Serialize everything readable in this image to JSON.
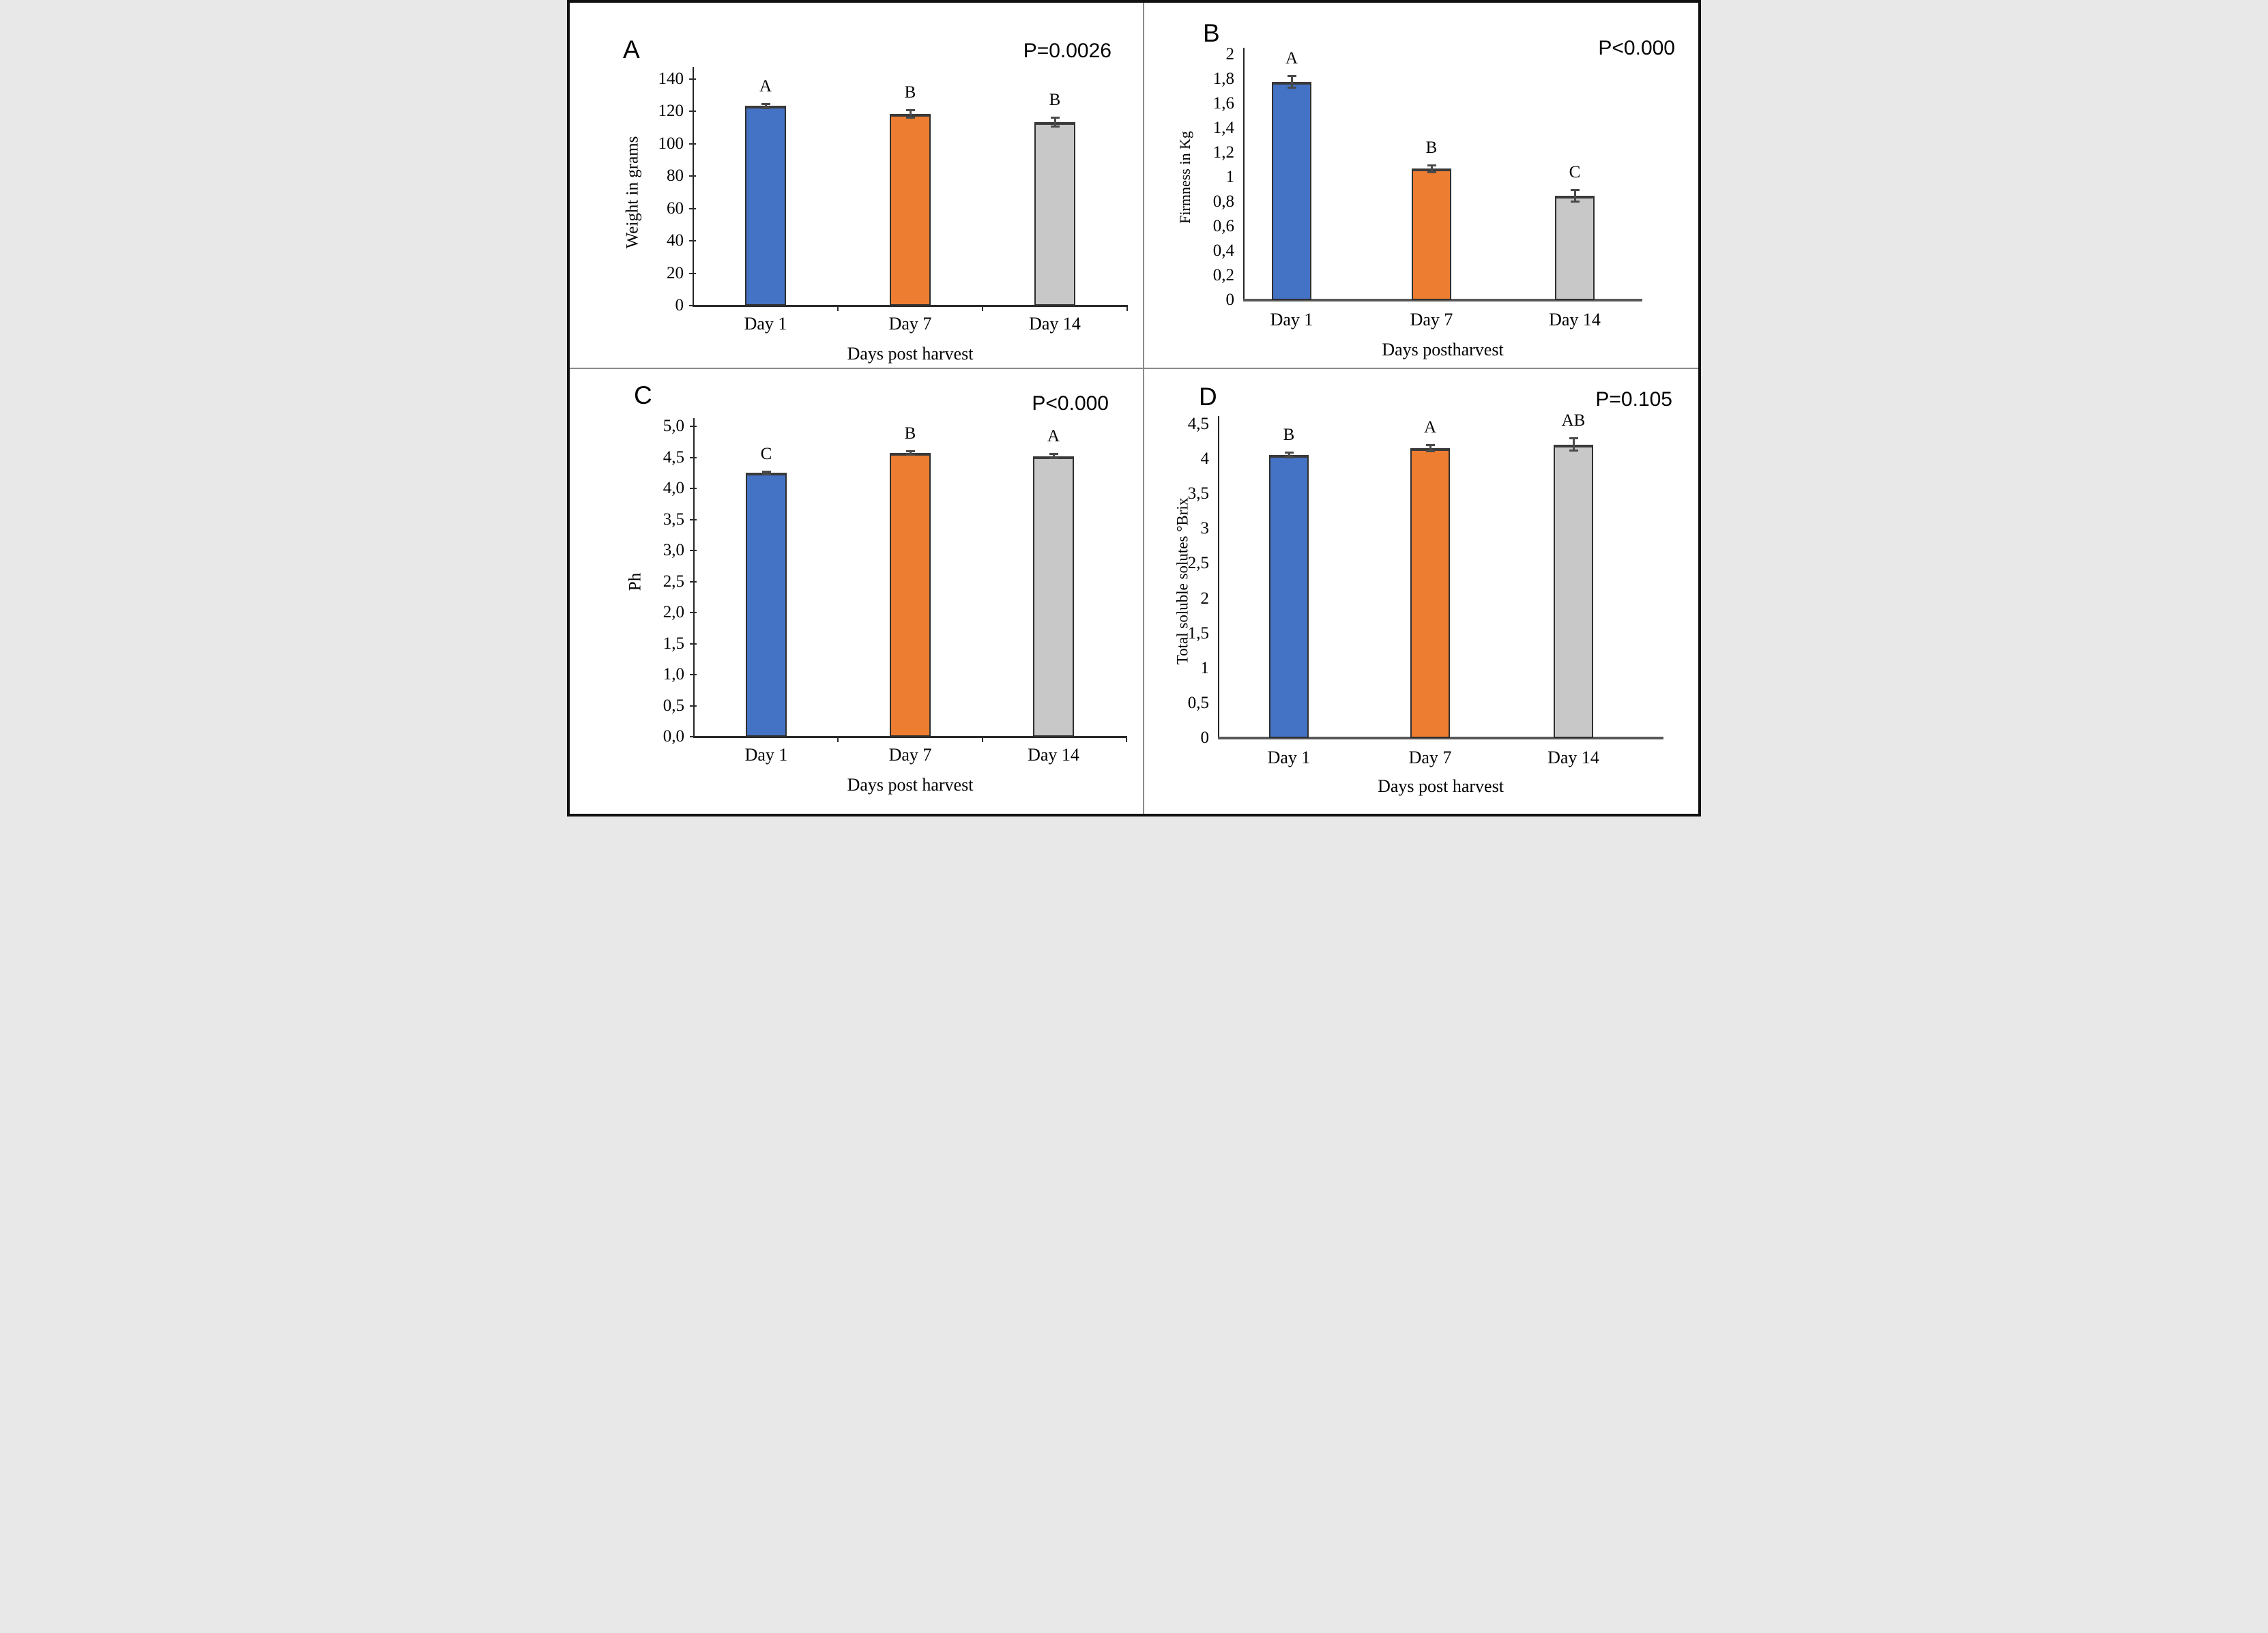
{
  "chart_data": [
    {
      "type": "bar",
      "panel_letter": "A",
      "p_label": "P=0.0026",
      "ylabel": "Weight in grams",
      "xlabel": "Days post harvest",
      "categories": [
        "Day 1",
        "Day 7",
        "Day 14"
      ],
      "values": [
        123.5,
        118.5,
        113.5
      ],
      "errors": [
        1.5,
        2.5,
        3.0
      ],
      "bar_letters": [
        "A",
        "B",
        "B"
      ],
      "bar_colors": [
        "#4472C4",
        "#ED7D31",
        "#C8C8C8"
      ],
      "ylim": [
        0,
        140
      ],
      "grid": false,
      "legend": false,
      "yticks": [
        {
          "value": 0,
          "label": "0"
        },
        {
          "value": 20,
          "label": "20"
        },
        {
          "value": 40,
          "label": "40"
        },
        {
          "value": 60,
          "label": "60"
        },
        {
          "value": 80,
          "label": "80"
        },
        {
          "value": 100,
          "label": "100"
        },
        {
          "value": 120,
          "label": "120"
        },
        {
          "value": 140,
          "label": "140"
        }
      ]
    },
    {
      "type": "bar",
      "panel_letter": "B",
      "p_label": "P<0.000",
      "ylabel": "Firmness in Kg",
      "xlabel": "Days postharvest",
      "categories": [
        "Day 1",
        "Day 7",
        "Day 14"
      ],
      "values": [
        1.78,
        1.07,
        0.85
      ],
      "errors": [
        0.05,
        0.03,
        0.05
      ],
      "bar_letters": [
        "A",
        "B",
        "C"
      ],
      "bar_colors": [
        "#4472C4",
        "#ED7D31",
        "#C8C8C8"
      ],
      "ylim": [
        0,
        2
      ],
      "grid": false,
      "legend": false,
      "yticks": [
        {
          "value": 0,
          "label": "0"
        },
        {
          "value": 0.2,
          "label": "0,2"
        },
        {
          "value": 0.4,
          "label": "0,4"
        },
        {
          "value": 0.6,
          "label": "0,6"
        },
        {
          "value": 0.8,
          "label": "0,8"
        },
        {
          "value": 1,
          "label": "1"
        },
        {
          "value": 1.2,
          "label": "1,2"
        },
        {
          "value": 1.4,
          "label": "1,4"
        },
        {
          "value": 1.6,
          "label": "1,6"
        },
        {
          "value": 1.8,
          "label": "1,8"
        },
        {
          "value": 2,
          "label": "2"
        }
      ]
    },
    {
      "type": "bar",
      "panel_letter": "C",
      "p_label": "P<0.000",
      "ylabel": "Ph",
      "xlabel": "Days post harvest",
      "categories": [
        "Day 1",
        "Day 7",
        "Day 14"
      ],
      "values": [
        4.25,
        4.57,
        4.52
      ],
      "errors": [
        0.03,
        0.03,
        0.04
      ],
      "bar_letters": [
        "C",
        "B",
        "A"
      ],
      "bar_colors": [
        "#4472C4",
        "#ED7D31",
        "#C8C8C8"
      ],
      "ylim": [
        0,
        5
      ],
      "grid": false,
      "legend": false,
      "yticks": [
        {
          "value": 0,
          "label": "0,0"
        },
        {
          "value": 0.5,
          "label": "0,5"
        },
        {
          "value": 1,
          "label": "1,0"
        },
        {
          "value": 1.5,
          "label": "1,5"
        },
        {
          "value": 2,
          "label": "2,0"
        },
        {
          "value": 2.5,
          "label": "2,5"
        },
        {
          "value": 3,
          "label": "3,0"
        },
        {
          "value": 3.5,
          "label": "3,5"
        },
        {
          "value": 4,
          "label": "4,0"
        },
        {
          "value": 4.5,
          "label": "4,5"
        },
        {
          "value": 5,
          "label": "5,0"
        }
      ]
    },
    {
      "type": "bar",
      "panel_letter": "D",
      "p_label": "P=0.105",
      "ylabel": "Total soluble solutes °Brix",
      "xlabel": "Days post harvest",
      "categories": [
        "Day 1",
        "Day 7",
        "Day 14"
      ],
      "values": [
        4.06,
        4.16,
        4.21
      ],
      "errors": [
        0.04,
        0.05,
        0.09
      ],
      "bar_letters": [
        "B",
        "A",
        "AB"
      ],
      "bar_colors": [
        "#4472C4",
        "#ED7D31",
        "#C8C8C8"
      ],
      "ylim": [
        0,
        4.5
      ],
      "grid": false,
      "legend": false,
      "yticks": [
        {
          "value": 0,
          "label": "0"
        },
        {
          "value": 0.5,
          "label": "0,5"
        },
        {
          "value": 1,
          "label": "1"
        },
        {
          "value": 1.5,
          "label": "1,5"
        },
        {
          "value": 2,
          "label": "2"
        },
        {
          "value": 2.5,
          "label": "2,5"
        },
        {
          "value": 3,
          "label": "3"
        },
        {
          "value": 3.5,
          "label": "3,5"
        },
        {
          "value": 4,
          "label": "4"
        },
        {
          "value": 4.5,
          "label": "4,5"
        }
      ]
    }
  ],
  "colors": {
    "series_blue": "#4472C4",
    "series_orange": "#ED7D31",
    "series_gray": "#C8C8C8",
    "bar_outline": "#2f2f2f",
    "bar_cap": "#3a3a3a",
    "error_bar": "#4a4a4a",
    "axis": "#262626",
    "baseline_gray": "#595959",
    "divider": "#8a8a8a",
    "figure_border": "#111111"
  }
}
